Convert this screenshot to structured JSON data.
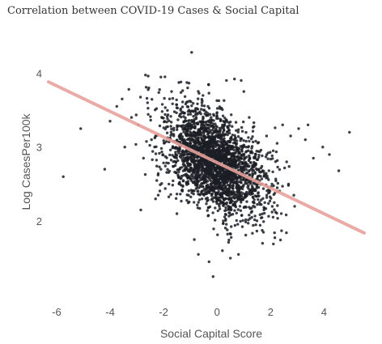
{
  "chart_data": {
    "type": "scatter",
    "title": "Correlation between COVID-19 Cases & Social Capital",
    "xlabel": "Social Capital Score",
    "ylabel": "Log CasesPer100k",
    "xlim": [
      -6.3,
      5.5
    ],
    "ylim": [
      1.05,
      4.55
    ],
    "x_ticks": [
      "-6",
      "-4",
      "-2",
      "0",
      "2",
      "4"
    ],
    "y_ticks": [
      "2",
      "3",
      "4"
    ],
    "grid": false,
    "legend": "none",
    "colors": {
      "points": "#1b1f24",
      "trend": "#e8a19b"
    },
    "trend_line": {
      "x": [
        -6.3,
        5.5
      ],
      "y": [
        3.88,
        1.84
      ]
    },
    "series": [
      {
        "points": [
          [
            -5.75,
            2.6
          ],
          [
            -5.1,
            3.25
          ],
          [
            -4.2,
            2.7
          ],
          [
            -4.0,
            3.35
          ],
          [
            -3.75,
            3.55
          ],
          [
            -3.55,
            3.65
          ],
          [
            -3.45,
            3.0
          ],
          [
            -3.3,
            3.78
          ],
          [
            -3.2,
            3.4
          ],
          [
            -2.95,
            3.3
          ],
          [
            -2.85,
            2.15
          ],
          [
            -2.75,
            2.85
          ],
          [
            -2.6,
            3.6
          ],
          [
            -2.55,
            3.8
          ],
          [
            -2.45,
            3.1
          ],
          [
            -2.3,
            2.3
          ],
          [
            -2.2,
            2.35
          ],
          [
            -2.1,
            2.7
          ],
          [
            -1.95,
            3.95
          ],
          [
            -1.8,
            2.5
          ],
          [
            -1.7,
            3.75
          ],
          [
            -1.5,
            2.1
          ],
          [
            -1.35,
            3.88
          ],
          [
            -1.1,
            3.8
          ],
          [
            -0.95,
            4.28
          ],
          [
            -0.85,
            1.75
          ],
          [
            -0.7,
            1.55
          ],
          [
            -0.5,
            3.5
          ],
          [
            -0.3,
            1.45
          ],
          [
            -0.15,
            1.25
          ],
          [
            0.2,
            1.6
          ],
          [
            0.35,
            3.9
          ],
          [
            0.5,
            1.5
          ],
          [
            0.65,
            3.92
          ],
          [
            0.8,
            1.55
          ],
          [
            0.9,
            3.9
          ],
          [
            1.0,
            3.75
          ],
          [
            1.2,
            3.4
          ],
          [
            1.45,
            1.95
          ],
          [
            1.7,
            1.7
          ],
          [
            1.85,
            3.15
          ],
          [
            2.1,
            2.95
          ],
          [
            2.25,
            2.45
          ],
          [
            2.45,
            3.3
          ],
          [
            2.6,
            2.8
          ],
          [
            2.75,
            3.15
          ],
          [
            2.9,
            2.2
          ],
          [
            3.05,
            3.25
          ],
          [
            3.3,
            3.1
          ],
          [
            3.4,
            3.3
          ],
          [
            3.6,
            2.85
          ],
          [
            3.95,
            3.0
          ],
          [
            4.2,
            2.9
          ],
          [
            4.55,
            2.68
          ],
          [
            4.95,
            3.2
          ]
        ]
      }
    ]
  }
}
